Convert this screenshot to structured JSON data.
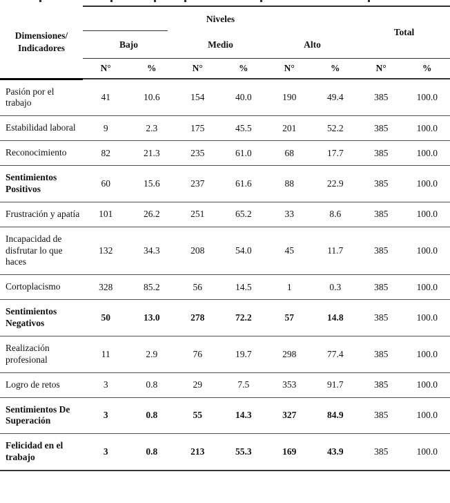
{
  "table": {
    "header": {
      "dimensions_label": "Dimensiones/\nIndicadores",
      "niveles_label": "Niveles",
      "total_label": "Total",
      "groups": [
        "Bajo",
        "Medio",
        "Alto"
      ],
      "n_label": "N°",
      "pct_label": "%"
    },
    "rows": [
      {
        "label": "Pasión por el trabajo",
        "bold_label": false,
        "bold_values": false,
        "values": [
          "41",
          "10.6",
          "154",
          "40.0",
          "190",
          "49.4",
          "385",
          "100.0"
        ]
      },
      {
        "label": "Estabilidad laboral",
        "bold_label": false,
        "bold_values": false,
        "values": [
          "9",
          "2.3",
          "175",
          "45.5",
          "201",
          "52.2",
          "385",
          "100.0"
        ]
      },
      {
        "label": "Reconocimiento",
        "bold_label": false,
        "bold_values": false,
        "values": [
          "82",
          "21.3",
          "235",
          "61.0",
          "68",
          "17.7",
          "385",
          "100.0"
        ]
      },
      {
        "label": "Sentimientos Positivos",
        "bold_label": true,
        "bold_values": false,
        "values": [
          "60",
          "15.6",
          "237",
          "61.6",
          "88",
          "22.9",
          "385",
          "100.0"
        ]
      },
      {
        "label": "Frustración y apatía",
        "bold_label": false,
        "bold_values": false,
        "values": [
          "101",
          "26.2",
          "251",
          "65.2",
          "33",
          "8.6",
          "385",
          "100.0"
        ]
      },
      {
        "label": "Incapacidad de disfrutar lo que haces",
        "bold_label": false,
        "bold_values": false,
        "values": [
          "132",
          "34.3",
          "208",
          "54.0",
          "45",
          "11.7",
          "385",
          "100.0"
        ]
      },
      {
        "label": "Cortoplacismo",
        "bold_label": false,
        "bold_values": false,
        "values": [
          "328",
          "85.2",
          "56",
          "14.5",
          "1",
          "0.3",
          "385",
          "100.0"
        ]
      },
      {
        "label": "Sentimientos Negativos",
        "bold_label": true,
        "bold_values": true,
        "values": [
          "50",
          "13.0",
          "278",
          "72.2",
          "57",
          "14.8",
          "385",
          "100.0"
        ]
      },
      {
        "label": "Realización profesional",
        "bold_label": false,
        "bold_values": false,
        "values": [
          "11",
          "2.9",
          "76",
          "19.7",
          "298",
          "77.4",
          "385",
          "100.0"
        ]
      },
      {
        "label": "Logro de retos",
        "bold_label": false,
        "bold_values": false,
        "values": [
          "3",
          "0.8",
          "29",
          "7.5",
          "353",
          "91.7",
          "385",
          "100.0"
        ]
      },
      {
        "label": "Sentimientos De Superación",
        "bold_label": true,
        "bold_values": true,
        "values": [
          "3",
          "0.8",
          "55",
          "14.3",
          "327",
          "84.9",
          "385",
          "100.0"
        ]
      },
      {
        "label": "Felicidad en el trabajo",
        "bold_label": true,
        "bold_values": true,
        "values": [
          "3",
          "0.8",
          "213",
          "55.3",
          "169",
          "43.9",
          "385",
          "100.0"
        ]
      }
    ]
  },
  "colors": {
    "background": "#ffffff",
    "text": "#111111",
    "heavy_rule": "#2e2e2e",
    "row_rule": "#4d4d4d"
  }
}
